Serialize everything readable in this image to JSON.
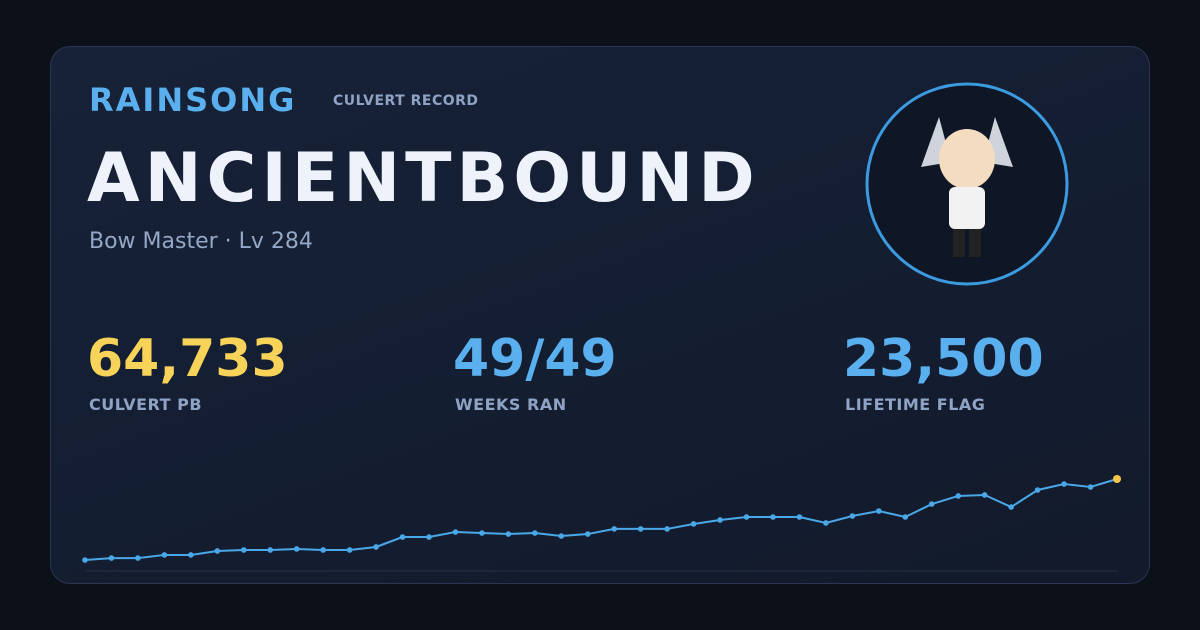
{
  "brand": "RAINSONG",
  "subtitle": "CULVERT RECORD",
  "name": "ANCIENTBOUND",
  "class_line": "Bow Master · Lv 284",
  "stats": [
    {
      "value": "64,733",
      "label": "CULVERT PB"
    },
    {
      "value": "49/49",
      "label": "WEEKS RAN"
    },
    {
      "value": "23,500",
      "label": "LIFETIME FLAG"
    }
  ],
  "chart_data": {
    "type": "line",
    "color": "#4aa8e8",
    "highlight_color": "#f5c84c",
    "ylim": [
      0,
      64733
    ],
    "values": [
      7700,
      9100,
      9100,
      11300,
      11300,
      14100,
      14800,
      14800,
      15500,
      14800,
      14800,
      16900,
      23900,
      23900,
      27400,
      26700,
      26000,
      26700,
      24600,
      26000,
      29600,
      29600,
      29600,
      33100,
      35900,
      38000,
      38000,
      38000,
      33800,
      38700,
      42200,
      38000,
      47100,
      52800,
      53500,
      45000,
      57000,
      61200,
      59100,
      64733
    ]
  }
}
